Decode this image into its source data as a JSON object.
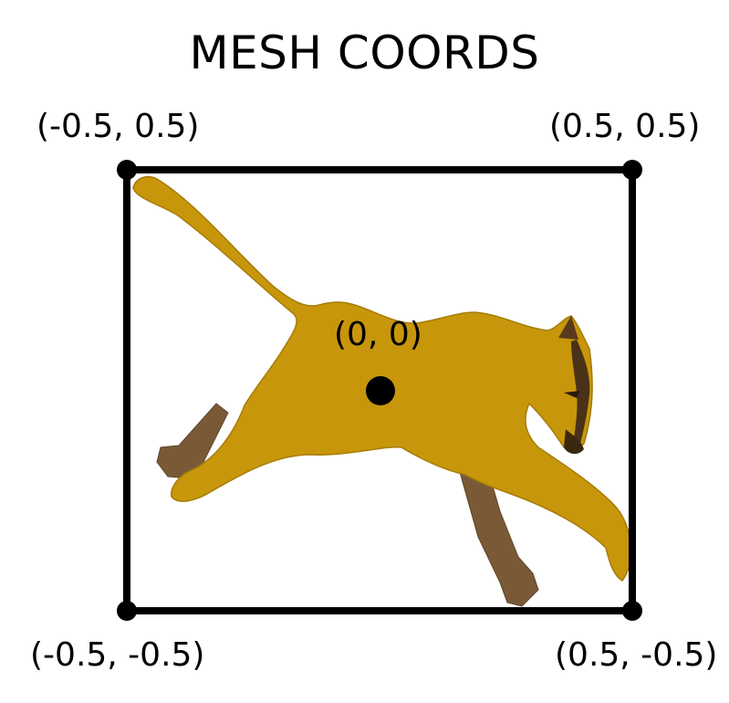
{
  "title": "MESH COORDS",
  "corners": {
    "top_left": "(-0.5, 0.5)",
    "top_right": "(0.5, 0.5)",
    "bottom_left": "(-0.5, -0.5)",
    "bottom_right": "(0.5, -0.5)"
  },
  "center": "(0, 0)",
  "colors": {
    "frame": "#000000",
    "cougar_body": "#c8960a",
    "cougar_legs_far": "#7a5a36",
    "background": "#ffffff"
  },
  "illustration": "cougar-running"
}
